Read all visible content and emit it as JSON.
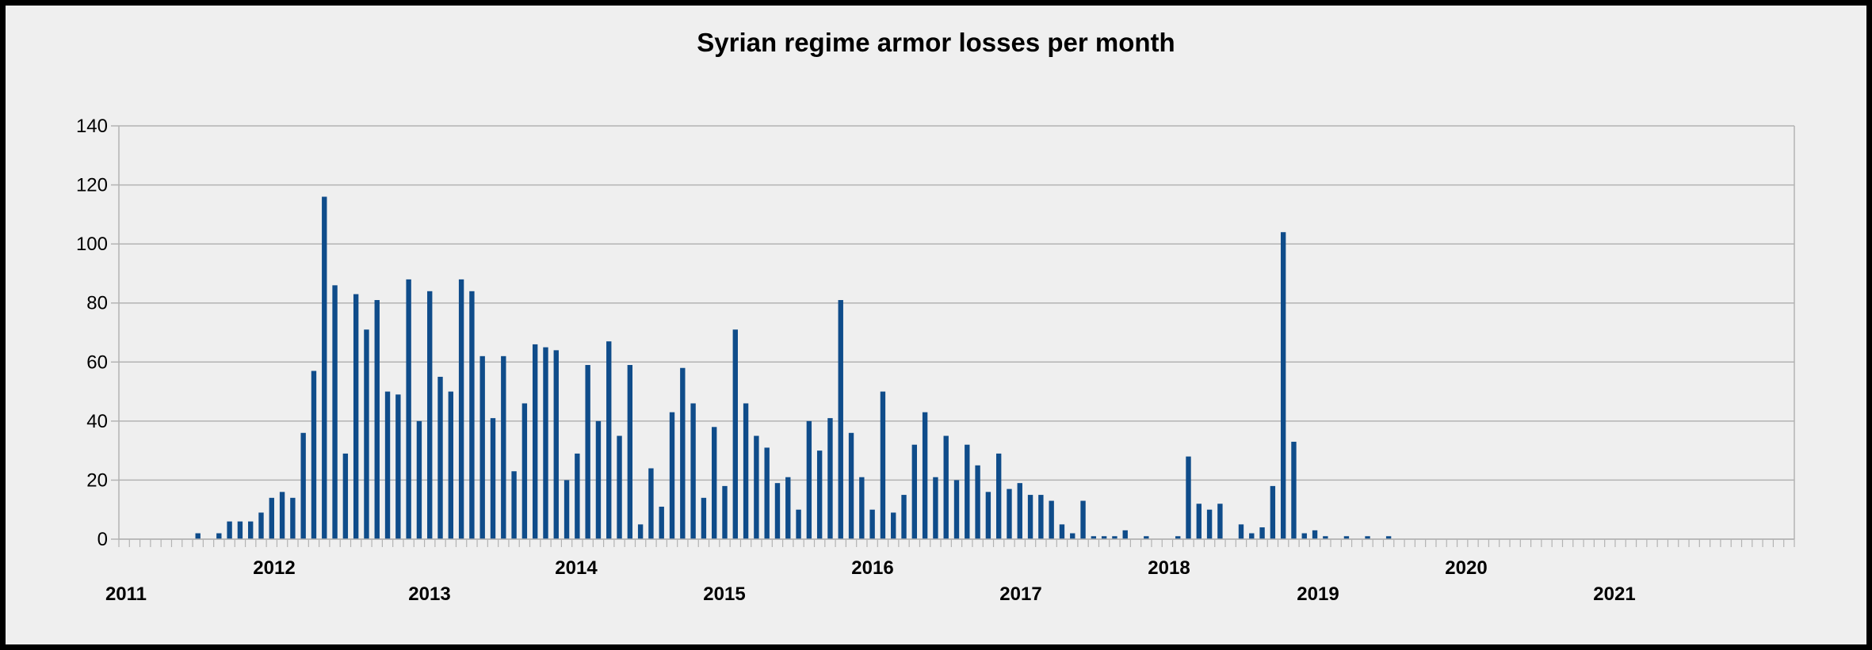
{
  "chart_data": {
    "type": "bar",
    "title": "Syrian regime armor losses per month",
    "xlabel": "",
    "ylabel": "",
    "ylim": [
      0,
      140
    ],
    "yticks": [
      0,
      20,
      40,
      60,
      80,
      100,
      120,
      140
    ],
    "grid": true,
    "legend": "none",
    "bar_color": "#0f4c8a",
    "start": "2011-01",
    "year_labels": [
      "2011",
      "2012",
      "2013",
      "2014",
      "2015",
      "2016",
      "2017",
      "2018",
      "2019",
      "2020",
      "2021"
    ],
    "values": [
      0,
      0,
      0,
      0,
      0,
      0,
      0,
      2,
      0,
      2,
      6,
      6,
      6,
      9,
      14,
      16,
      14,
      36,
      57,
      116,
      86,
      29,
      83,
      71,
      81,
      50,
      49,
      88,
      40,
      84,
      55,
      50,
      88,
      84,
      62,
      41,
      62,
      23,
      46,
      66,
      65,
      64,
      20,
      29,
      59,
      40,
      67,
      35,
      59,
      5,
      24,
      11,
      43,
      58,
      46,
      14,
      38,
      18,
      71,
      46,
      35,
      31,
      19,
      21,
      10,
      40,
      30,
      41,
      81,
      36,
      21,
      10,
      50,
      9,
      15,
      32,
      43,
      21,
      35,
      20,
      32,
      25,
      16,
      29,
      17,
      19,
      15,
      15,
      13,
      5,
      2,
      13,
      1,
      1,
      1,
      3,
      0,
      1,
      0,
      0,
      1,
      28,
      12,
      10,
      12,
      0,
      5,
      2,
      4,
      18,
      104,
      33,
      2,
      3,
      1,
      0,
      1,
      0,
      1,
      0,
      1,
      0,
      0,
      0,
      0,
      0,
      0,
      0,
      0,
      0,
      0,
      0,
      0,
      0,
      0,
      0,
      0,
      0
    ]
  }
}
